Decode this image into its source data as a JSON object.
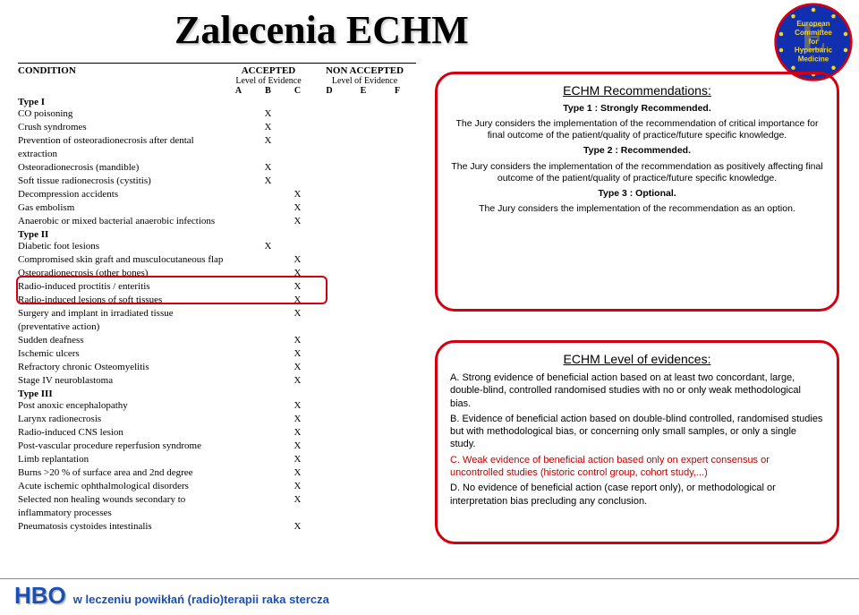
{
  "title": "Zalecenia ECHM",
  "logo": {
    "line1": "European",
    "line2": "Committee",
    "line3": "for",
    "line4": "Hyperbaric",
    "line5": "Medicine",
    "circle_fill": "#1030b0",
    "border": "#d4000f",
    "star": "#f7d417",
    "text": "#f7d417"
  },
  "headers": {
    "condition": "CONDITION",
    "accepted": "ACCEPTED",
    "non": "NON ACCEPTED",
    "loe": "Level of Evidence",
    "letters_acc": [
      "A",
      "B",
      "C"
    ],
    "letters_non": [
      "D",
      "E",
      "F"
    ]
  },
  "types": {
    "t1": "Type I",
    "t2": "Type II",
    "t3": "Type III"
  },
  "rows1": [
    {
      "c": "CO poisoning",
      "m": [
        0,
        1,
        0,
        0,
        0,
        0
      ]
    },
    {
      "c": "Crush syndromes",
      "m": [
        0,
        1,
        0,
        0,
        0,
        0
      ]
    },
    {
      "c": "Prevention of osteoradionecrosis after dental extraction",
      "m": [
        0,
        1,
        0,
        0,
        0,
        0
      ]
    },
    {
      "c": "Osteoradionecrosis (mandible)",
      "m": [
        0,
        1,
        0,
        0,
        0,
        0
      ]
    },
    {
      "c": "Soft tissue radionecrosis (cystitis)",
      "m": [
        0,
        1,
        0,
        0,
        0,
        0
      ]
    },
    {
      "c": "Decompression accidents",
      "m": [
        0,
        0,
        1,
        0,
        0,
        0
      ]
    },
    {
      "c": "Gas embolism",
      "m": [
        0,
        0,
        1,
        0,
        0,
        0
      ]
    },
    {
      "c": "Anaerobic or mixed bacterial anaerobic infections",
      "m": [
        0,
        0,
        1,
        0,
        0,
        0
      ]
    }
  ],
  "rows2": [
    {
      "c": "Diabetic foot lesions",
      "m": [
        0,
        1,
        0,
        0,
        0,
        0
      ]
    },
    {
      "c": "Compromised skin graft and musculocutaneous flap",
      "m": [
        0,
        0,
        1,
        0,
        0,
        0
      ]
    },
    {
      "c": "Osteoradionecrosis (other bones)",
      "m": [
        0,
        0,
        1,
        0,
        0,
        0
      ]
    },
    {
      "c": "Radio-induced proctitis / enteritis",
      "m": [
        0,
        0,
        1,
        0,
        0,
        0
      ]
    },
    {
      "c": "Radio-induced lesions of soft tissues",
      "m": [
        0,
        0,
        1,
        0,
        0,
        0
      ]
    },
    {
      "c": "Surgery and implant in irradiated tissue (preventative action)",
      "m": [
        0,
        0,
        1,
        0,
        0,
        0
      ]
    },
    {
      "c": "Sudden deafness",
      "m": [
        0,
        0,
        1,
        0,
        0,
        0
      ]
    },
    {
      "c": "Ischemic ulcers",
      "m": [
        0,
        0,
        1,
        0,
        0,
        0
      ]
    },
    {
      "c": "Refractory chronic Osteomyelitis",
      "m": [
        0,
        0,
        1,
        0,
        0,
        0
      ]
    },
    {
      "c": "Stage IV neuroblastoma",
      "m": [
        0,
        0,
        1,
        0,
        0,
        0
      ]
    }
  ],
  "rows3": [
    {
      "c": "Post anoxic encephalopathy",
      "m": [
        0,
        0,
        1,
        0,
        0,
        0
      ]
    },
    {
      "c": "Larynx radionecrosis",
      "m": [
        0,
        0,
        1,
        0,
        0,
        0
      ]
    },
    {
      "c": "Radio-induced CNS lesion",
      "m": [
        0,
        0,
        1,
        0,
        0,
        0
      ]
    },
    {
      "c": "Post-vascular procedure reperfusion syndrome",
      "m": [
        0,
        0,
        1,
        0,
        0,
        0
      ]
    },
    {
      "c": "Limb replantation",
      "m": [
        0,
        0,
        1,
        0,
        0,
        0
      ]
    },
    {
      "c": "Burns >20 % of surface area and 2nd degree",
      "m": [
        0,
        0,
        1,
        0,
        0,
        0
      ]
    },
    {
      "c": "Acute ischemic ophthalmological disorders",
      "m": [
        0,
        0,
        1,
        0,
        0,
        0
      ]
    },
    {
      "c": "Selected non healing wounds secondary to inflammatory processes",
      "m": [
        0,
        0,
        1,
        0,
        0,
        0
      ]
    },
    {
      "c": "Pneumatosis cystoides intestinalis",
      "m": [
        0,
        0,
        1,
        0,
        0,
        0
      ]
    }
  ],
  "recBox": {
    "title": "ECHM Recommendations:",
    "t1h": "Type 1 : Strongly Recommended.",
    "t1": "The Jury considers the implementation of the recommendation of critical importance for final outcome of the patient/quality of practice/future specific knowledge.",
    "t2h": "Type 2 : Recommended.",
    "t2": "The Jury considers the implementation of the recommendation as positively affecting final outcome of the patient/quality of practice/future specific knowledge.",
    "t3h": "Type 3 : Optional.",
    "t3": "The Jury considers the implementation of the recommendation as an option."
  },
  "evBox": {
    "title": "ECHM Level of evidences:",
    "a": "A. Strong evidence of beneficial action based on at least two concordant, large, double-blind, controlled randomised studies with no or only weak methodological bias.",
    "b": "B. Evidence of beneficial action based on double-blind controlled, randomised studies but with methodological bias, or concerning only small samples, or only a single study.",
    "c": "C. Weak evidence of beneficial action based only on expert consensus or uncontrolled studies (historic control group, cohort study,...)",
    "d": "D. No evidence of beneficial action (case report only), or methodological or interpretation bias precluding any conclusion."
  },
  "footer": {
    "hbo": "HBO",
    "txt": "w leczeniu powikłań (radio)terapii raka stercza"
  },
  "style": {
    "red": "#d4000f",
    "blue": "#1a4fb5"
  }
}
